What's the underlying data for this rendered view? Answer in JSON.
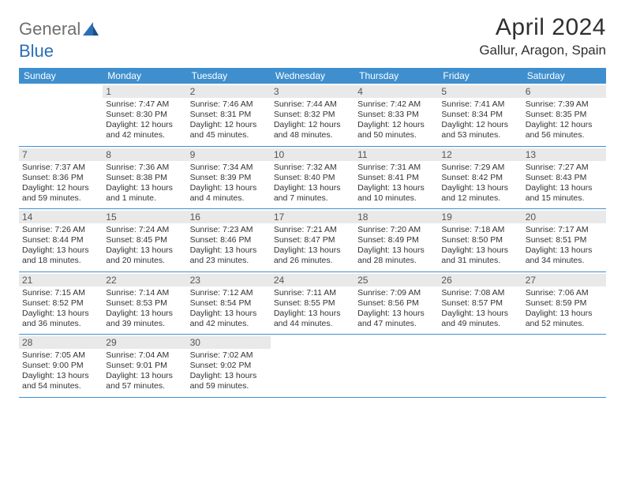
{
  "brand": {
    "part1": "General",
    "part2": "Blue"
  },
  "title": "April 2024",
  "location": "Gallur, Aragon, Spain",
  "colors": {
    "header_bg": "#3f8fce",
    "header_fg": "#ffffff",
    "daynum_bg": "#e9e9e9",
    "rule": "#3f8fce",
    "logo_gray": "#6f6f6f",
    "logo_blue": "#2a6fb5",
    "text": "#333333",
    "page_bg": "#ffffff"
  },
  "typography": {
    "title_fontsize": 30,
    "location_fontsize": 17,
    "weekday_fontsize": 12,
    "body_fontsize": 10.5
  },
  "weekdays": [
    "Sunday",
    "Monday",
    "Tuesday",
    "Wednesday",
    "Thursday",
    "Friday",
    "Saturday"
  ],
  "weeks": [
    [
      null,
      {
        "n": "1",
        "sunrise": "Sunrise: 7:47 AM",
        "sunset": "Sunset: 8:30 PM",
        "day1": "Daylight: 12 hours",
        "day2": "and 42 minutes."
      },
      {
        "n": "2",
        "sunrise": "Sunrise: 7:46 AM",
        "sunset": "Sunset: 8:31 PM",
        "day1": "Daylight: 12 hours",
        "day2": "and 45 minutes."
      },
      {
        "n": "3",
        "sunrise": "Sunrise: 7:44 AM",
        "sunset": "Sunset: 8:32 PM",
        "day1": "Daylight: 12 hours",
        "day2": "and 48 minutes."
      },
      {
        "n": "4",
        "sunrise": "Sunrise: 7:42 AM",
        "sunset": "Sunset: 8:33 PM",
        "day1": "Daylight: 12 hours",
        "day2": "and 50 minutes."
      },
      {
        "n": "5",
        "sunrise": "Sunrise: 7:41 AM",
        "sunset": "Sunset: 8:34 PM",
        "day1": "Daylight: 12 hours",
        "day2": "and 53 minutes."
      },
      {
        "n": "6",
        "sunrise": "Sunrise: 7:39 AM",
        "sunset": "Sunset: 8:35 PM",
        "day1": "Daylight: 12 hours",
        "day2": "and 56 minutes."
      }
    ],
    [
      {
        "n": "7",
        "sunrise": "Sunrise: 7:37 AM",
        "sunset": "Sunset: 8:36 PM",
        "day1": "Daylight: 12 hours",
        "day2": "and 59 minutes."
      },
      {
        "n": "8",
        "sunrise": "Sunrise: 7:36 AM",
        "sunset": "Sunset: 8:38 PM",
        "day1": "Daylight: 13 hours",
        "day2": "and 1 minute."
      },
      {
        "n": "9",
        "sunrise": "Sunrise: 7:34 AM",
        "sunset": "Sunset: 8:39 PM",
        "day1": "Daylight: 13 hours",
        "day2": "and 4 minutes."
      },
      {
        "n": "10",
        "sunrise": "Sunrise: 7:32 AM",
        "sunset": "Sunset: 8:40 PM",
        "day1": "Daylight: 13 hours",
        "day2": "and 7 minutes."
      },
      {
        "n": "11",
        "sunrise": "Sunrise: 7:31 AM",
        "sunset": "Sunset: 8:41 PM",
        "day1": "Daylight: 13 hours",
        "day2": "and 10 minutes."
      },
      {
        "n": "12",
        "sunrise": "Sunrise: 7:29 AM",
        "sunset": "Sunset: 8:42 PM",
        "day1": "Daylight: 13 hours",
        "day2": "and 12 minutes."
      },
      {
        "n": "13",
        "sunrise": "Sunrise: 7:27 AM",
        "sunset": "Sunset: 8:43 PM",
        "day1": "Daylight: 13 hours",
        "day2": "and 15 minutes."
      }
    ],
    [
      {
        "n": "14",
        "sunrise": "Sunrise: 7:26 AM",
        "sunset": "Sunset: 8:44 PM",
        "day1": "Daylight: 13 hours",
        "day2": "and 18 minutes."
      },
      {
        "n": "15",
        "sunrise": "Sunrise: 7:24 AM",
        "sunset": "Sunset: 8:45 PM",
        "day1": "Daylight: 13 hours",
        "day2": "and 20 minutes."
      },
      {
        "n": "16",
        "sunrise": "Sunrise: 7:23 AM",
        "sunset": "Sunset: 8:46 PM",
        "day1": "Daylight: 13 hours",
        "day2": "and 23 minutes."
      },
      {
        "n": "17",
        "sunrise": "Sunrise: 7:21 AM",
        "sunset": "Sunset: 8:47 PM",
        "day1": "Daylight: 13 hours",
        "day2": "and 26 minutes."
      },
      {
        "n": "18",
        "sunrise": "Sunrise: 7:20 AM",
        "sunset": "Sunset: 8:49 PM",
        "day1": "Daylight: 13 hours",
        "day2": "and 28 minutes."
      },
      {
        "n": "19",
        "sunrise": "Sunrise: 7:18 AM",
        "sunset": "Sunset: 8:50 PM",
        "day1": "Daylight: 13 hours",
        "day2": "and 31 minutes."
      },
      {
        "n": "20",
        "sunrise": "Sunrise: 7:17 AM",
        "sunset": "Sunset: 8:51 PM",
        "day1": "Daylight: 13 hours",
        "day2": "and 34 minutes."
      }
    ],
    [
      {
        "n": "21",
        "sunrise": "Sunrise: 7:15 AM",
        "sunset": "Sunset: 8:52 PM",
        "day1": "Daylight: 13 hours",
        "day2": "and 36 minutes."
      },
      {
        "n": "22",
        "sunrise": "Sunrise: 7:14 AM",
        "sunset": "Sunset: 8:53 PM",
        "day1": "Daylight: 13 hours",
        "day2": "and 39 minutes."
      },
      {
        "n": "23",
        "sunrise": "Sunrise: 7:12 AM",
        "sunset": "Sunset: 8:54 PM",
        "day1": "Daylight: 13 hours",
        "day2": "and 42 minutes."
      },
      {
        "n": "24",
        "sunrise": "Sunrise: 7:11 AM",
        "sunset": "Sunset: 8:55 PM",
        "day1": "Daylight: 13 hours",
        "day2": "and 44 minutes."
      },
      {
        "n": "25",
        "sunrise": "Sunrise: 7:09 AM",
        "sunset": "Sunset: 8:56 PM",
        "day1": "Daylight: 13 hours",
        "day2": "and 47 minutes."
      },
      {
        "n": "26",
        "sunrise": "Sunrise: 7:08 AM",
        "sunset": "Sunset: 8:57 PM",
        "day1": "Daylight: 13 hours",
        "day2": "and 49 minutes."
      },
      {
        "n": "27",
        "sunrise": "Sunrise: 7:06 AM",
        "sunset": "Sunset: 8:59 PM",
        "day1": "Daylight: 13 hours",
        "day2": "and 52 minutes."
      }
    ],
    [
      {
        "n": "28",
        "sunrise": "Sunrise: 7:05 AM",
        "sunset": "Sunset: 9:00 PM",
        "day1": "Daylight: 13 hours",
        "day2": "and 54 minutes."
      },
      {
        "n": "29",
        "sunrise": "Sunrise: 7:04 AM",
        "sunset": "Sunset: 9:01 PM",
        "day1": "Daylight: 13 hours",
        "day2": "and 57 minutes."
      },
      {
        "n": "30",
        "sunrise": "Sunrise: 7:02 AM",
        "sunset": "Sunset: 9:02 PM",
        "day1": "Daylight: 13 hours",
        "day2": "and 59 minutes."
      },
      null,
      null,
      null,
      null
    ]
  ]
}
